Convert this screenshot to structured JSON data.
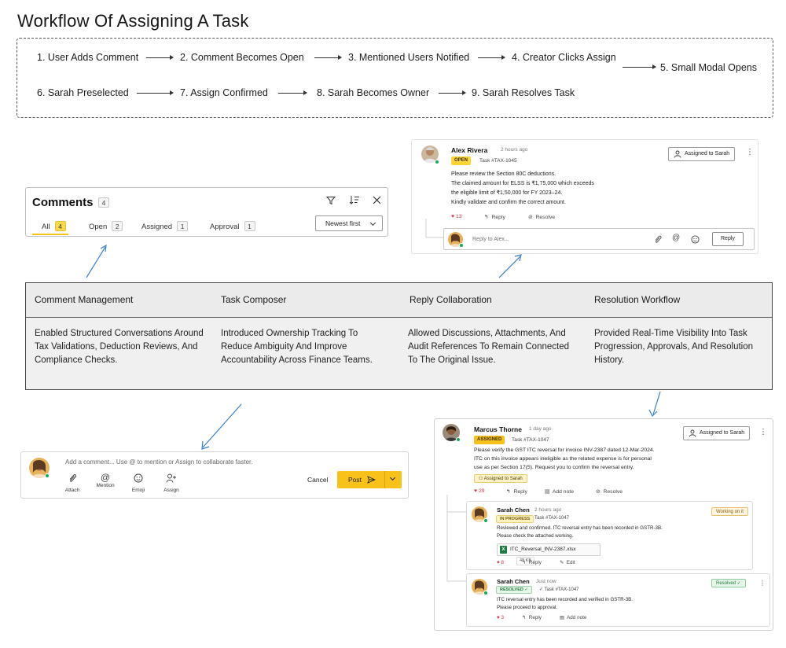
{
  "page_title": "Workflow Of Assigning A Task",
  "workflow": {
    "steps": [
      "1. User Adds Comment",
      "2. Comment Becomes Open",
      "3. Mentioned Users Notified",
      "4. Creator Clicks Assign",
      "5. Small Modal Opens",
      "6. Sarah Preselected",
      "7. Assign Confirmed",
      "8. Sarah Becomes Owner",
      "9. Sarah Resolves Task"
    ]
  },
  "comments_panel": {
    "title": "Comments",
    "count": "4",
    "tabs": [
      {
        "label": "All",
        "count": "4"
      },
      {
        "label": "Open",
        "count": "2"
      },
      {
        "label": "Assigned",
        "count": "1"
      },
      {
        "label": "Approval",
        "count": "1"
      }
    ],
    "sort": "Newest first",
    "icons": [
      "filter-icon",
      "sort-icon",
      "close-icon"
    ]
  },
  "alex_comment": {
    "name": "Alex Rivera",
    "time": "2 hours ago",
    "status": "OPEN",
    "task_id": "Task #TAX-1045",
    "assign_button": "Assigned to Sarah",
    "body": [
      "Please review the Section 80C deductions.",
      "The claimed amount for ELSS is ₹1,75,000 which exceeds",
      "the eligible limit of ₹1,50,000 for FY 2023–24.",
      "Kindly validate and confirm the correct amount."
    ],
    "likes": "13",
    "reply_label": "Reply",
    "resolve_label": "Resolve",
    "reply_placeholder": "Reply to Alex...",
    "reply_button": "Reply"
  },
  "features": [
    {
      "title": "Comment Management",
      "desc": "Enabled Structured Conversations Around Tax Validations, Deduction Reviews, And Compliance Checks."
    },
    {
      "title": "Task Composer",
      "desc": "Introduced Ownership Tracking To Reduce Ambiguity And Improve Accountability Across Finance Teams."
    },
    {
      "title": "Reply Collaboration",
      "desc": "Allowed Discussions, Attachments, And Audit References To Remain Connected To The Original Issue."
    },
    {
      "title": "Resolution Workflow",
      "desc": "Provided Real-Time Visibility Into Task Progression, Approvals, And Resolution History."
    }
  ],
  "composer": {
    "placeholder": "Add a comment... Use @ to mention or Assign to collaborate faster.",
    "tools": [
      {
        "label": "Attach",
        "icon": "paperclip-icon"
      },
      {
        "label": "Mention",
        "icon": "at-icon"
      },
      {
        "label": "Emoji",
        "icon": "emoji-icon"
      },
      {
        "label": "Assign",
        "icon": "assign-user-icon"
      }
    ],
    "cancel": "Cancel",
    "post": "Post"
  },
  "marcus_comment": {
    "name": "Marcus Thorne",
    "time": "1 day ago",
    "status": "ASSIGNED",
    "task_id": "Task #TAX-1047",
    "assign_button": "Assigned to Sarah",
    "body": [
      "Please verify the GST ITC reversal for invoice INV-2387 dated 12-Mar-2024.",
      "ITC on this invoice appears ineligible as the related expense is for personal",
      "use as per Section 17(5). Request you to confirm the reversal entry."
    ],
    "assigned_pill": "Assigned to Sarah",
    "likes": "29",
    "reply_label": "Reply",
    "add_note_label": "Add note",
    "resolve_label": "Resolve"
  },
  "sarah_reply_1": {
    "name": "Sarah Chen",
    "time": "2 hours ago",
    "status": "IN PROGRESS",
    "task_id": "Task #TAX-1047",
    "state_pill": "Working on it",
    "body": [
      "Reviewed and confirmed. ITC reversal entry has been recorded in GSTR-3B.",
      "Please check the attached working."
    ],
    "file_name": "ITC_Reversal_INV-2387.xlsx",
    "file_size": "48 KB",
    "file_icon": "X",
    "likes": "8",
    "reply_label": "Reply",
    "edit_label": "Edit"
  },
  "sarah_reply_2": {
    "name": "Sarah Chen",
    "time": "Just now",
    "status": "RESOLVED",
    "task_id": "Task #TAX-1047",
    "state_pill": "Resolved",
    "body": [
      "ITC reversal entry has been recorded and verified in GSTR-3B.",
      "Please proceed to approval."
    ],
    "likes": "3",
    "reply_label": "Reply",
    "add_note_label": "Add note"
  },
  "colors": {
    "accent_yellow": "#f9c21b",
    "online_green": "#19a75b",
    "heart_red": "#d9334b",
    "arrow_blue": "#3a7fd0"
  }
}
